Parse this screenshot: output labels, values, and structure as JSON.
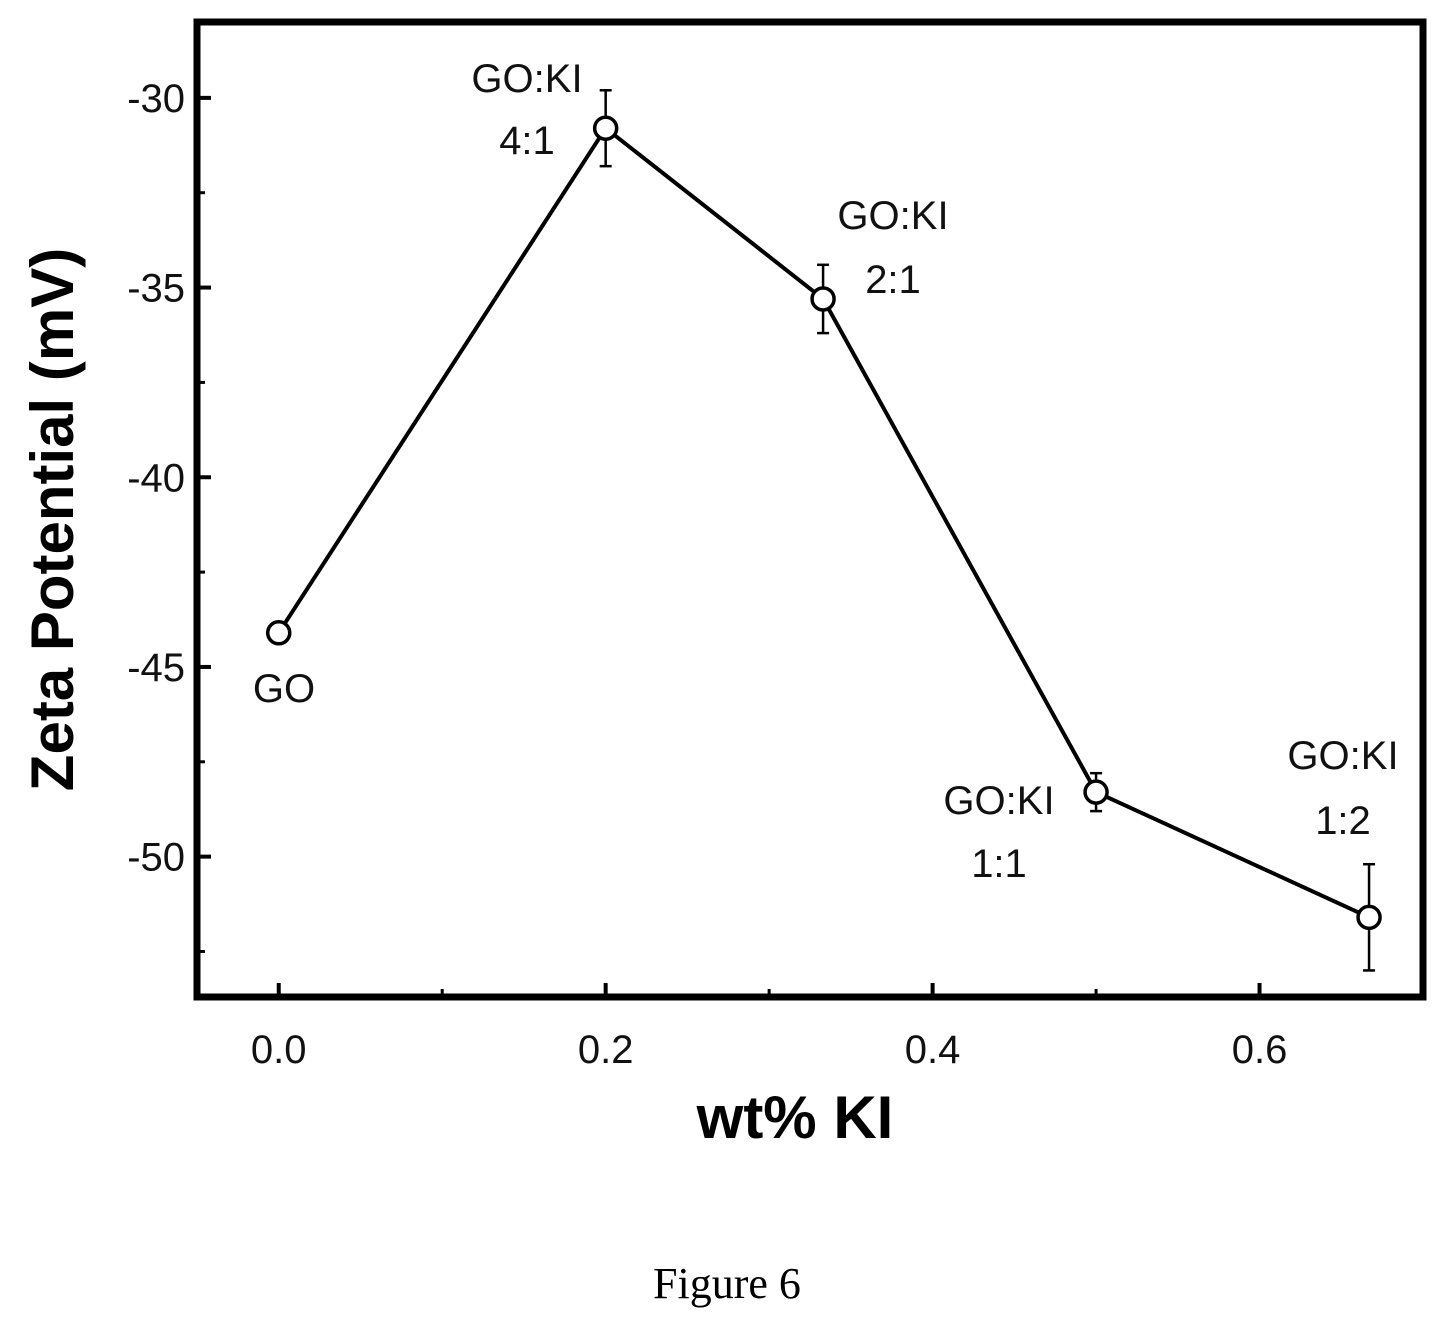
{
  "chart_data": {
    "type": "line",
    "xlabel": "wt% KI",
    "ylabel": "Zeta Potential (mV)",
    "xlim": [
      -0.05,
      0.7
    ],
    "ylim": [
      -53.7,
      -28.0
    ],
    "x_ticks": [
      "0.0",
      "0.2",
      "0.4",
      "0.6"
    ],
    "y_ticks": [
      "-30",
      "-35",
      "-40",
      "-45",
      "-50"
    ],
    "grid": false,
    "legend": "none",
    "series": [
      {
        "x": [
          0.0,
          0.2,
          0.333,
          0.5,
          0.667
        ],
        "y": [
          -44.1,
          -30.8,
          -35.3,
          -48.3,
          -51.6
        ],
        "error": [
          0.0,
          1.0,
          0.9,
          0.5,
          1.4
        ],
        "marker": "open-circle",
        "color": "#000000"
      }
    ],
    "annotations": [
      {
        "lines": [
          "GO"
        ]
      },
      {
        "lines": [
          "GO:KI",
          "4:1"
        ]
      },
      {
        "lines": [
          "GO:KI",
          "2:1"
        ]
      },
      {
        "lines": [
          "GO:KI",
          "1:1"
        ]
      },
      {
        "lines": [
          "GO:KI",
          "1:2"
        ]
      }
    ]
  },
  "caption": "Figure 6"
}
